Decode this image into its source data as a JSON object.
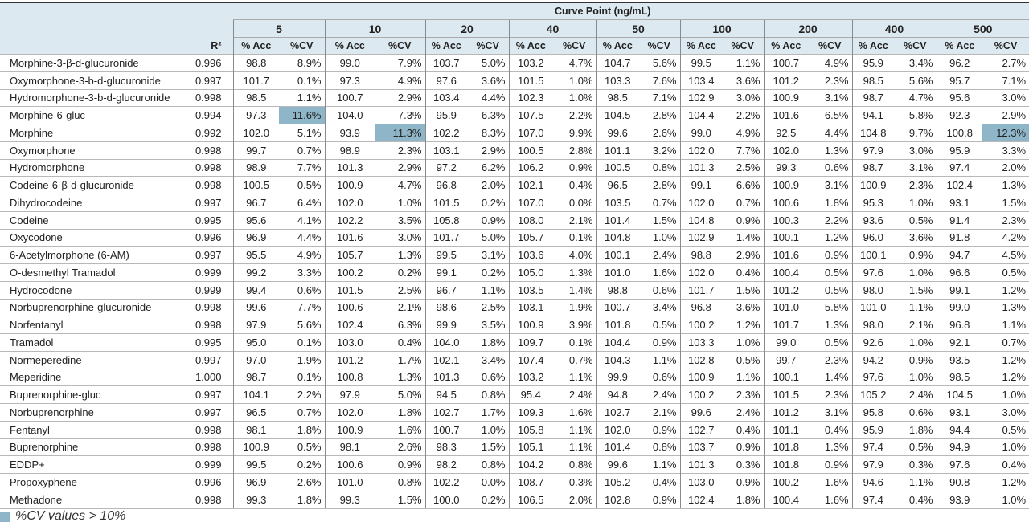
{
  "header": {
    "title": "Curve Point (ng/mL)",
    "r2_label": "R²",
    "acc_label": "% Acc",
    "cv_label": "%CV",
    "points": [
      "5",
      "10",
      "20",
      "40",
      "50",
      "100",
      "200",
      "400",
      "500"
    ]
  },
  "highlight_color": "#8fb6c8",
  "highlight_threshold_pct": 10,
  "rows": [
    {
      "name": "Morphine-3-β-d-glucuronide",
      "r2": "0.996",
      "vals": [
        [
          "98.8",
          "8.9%"
        ],
        [
          "99.0",
          "7.9%"
        ],
        [
          "103.7",
          "5.0%"
        ],
        [
          "103.2",
          "4.7%"
        ],
        [
          "104.7",
          "5.6%"
        ],
        [
          "99.5",
          "1.1%"
        ],
        [
          "100.7",
          "4.9%"
        ],
        [
          "95.9",
          "3.4%"
        ],
        [
          "96.2",
          "2.7%"
        ]
      ]
    },
    {
      "name": "Oxymorphone-3-b-d-glucuronide",
      "r2": "0.997",
      "vals": [
        [
          "101.7",
          "0.1%"
        ],
        [
          "97.3",
          "4.9%"
        ],
        [
          "97.6",
          "3.6%"
        ],
        [
          "101.5",
          "1.0%"
        ],
        [
          "103.3",
          "7.6%"
        ],
        [
          "103.4",
          "3.6%"
        ],
        [
          "101.2",
          "2.3%"
        ],
        [
          "98.5",
          "5.6%"
        ],
        [
          "95.7",
          "7.1%"
        ]
      ]
    },
    {
      "name": "Hydromorphone-3-b-d-glucuronide",
      "r2": "0.998",
      "vals": [
        [
          "98.5",
          "1.1%"
        ],
        [
          "100.7",
          "2.9%"
        ],
        [
          "103.4",
          "4.4%"
        ],
        [
          "102.3",
          "1.0%"
        ],
        [
          "98.5",
          "7.1%"
        ],
        [
          "102.9",
          "3.0%"
        ],
        [
          "100.9",
          "3.1%"
        ],
        [
          "98.7",
          "4.7%"
        ],
        [
          "95.6",
          "3.0%"
        ]
      ]
    },
    {
      "name": "Morphine-6-gluc",
      "r2": "0.994",
      "vals": [
        [
          "97.3",
          "11.6%"
        ],
        [
          "104.0",
          "7.3%"
        ],
        [
          "95.9",
          "6.3%"
        ],
        [
          "107.5",
          "2.2%"
        ],
        [
          "104.5",
          "2.8%"
        ],
        [
          "104.4",
          "2.2%"
        ],
        [
          "101.6",
          "6.5%"
        ],
        [
          "94.1",
          "5.8%"
        ],
        [
          "92.3",
          "2.9%"
        ]
      ]
    },
    {
      "name": "Morphine",
      "r2": "0.992",
      "vals": [
        [
          "102.0",
          "5.1%"
        ],
        [
          "93.9",
          "11.3%"
        ],
        [
          "102.2",
          "8.3%"
        ],
        [
          "107.0",
          "9.9%"
        ],
        [
          "99.6",
          "2.6%"
        ],
        [
          "99.0",
          "4.9%"
        ],
        [
          "92.5",
          "4.4%"
        ],
        [
          "104.8",
          "9.7%"
        ],
        [
          "100.8",
          "12.3%"
        ]
      ]
    },
    {
      "name": "Oxymorphone",
      "r2": "0.998",
      "vals": [
        [
          "99.7",
          "0.7%"
        ],
        [
          "98.9",
          "2.3%"
        ],
        [
          "103.1",
          "2.9%"
        ],
        [
          "100.5",
          "2.8%"
        ],
        [
          "101.1",
          "3.2%"
        ],
        [
          "102.0",
          "7.7%"
        ],
        [
          "102.0",
          "1.3%"
        ],
        [
          "97.9",
          "3.0%"
        ],
        [
          "95.9",
          "3.3%"
        ]
      ]
    },
    {
      "name": "Hydromorphone",
      "r2": "0.998",
      "vals": [
        [
          "98.9",
          "7.7%"
        ],
        [
          "101.3",
          "2.9%"
        ],
        [
          "97.2",
          "6.2%"
        ],
        [
          "106.2",
          "0.9%"
        ],
        [
          "100.5",
          "0.8%"
        ],
        [
          "101.3",
          "2.5%"
        ],
        [
          "99.3",
          "0.6%"
        ],
        [
          "98.7",
          "3.1%"
        ],
        [
          "97.4",
          "2.0%"
        ]
      ]
    },
    {
      "name": "Codeine-6-β-d-glucuronide",
      "r2": "0.998",
      "vals": [
        [
          "100.5",
          "0.5%"
        ],
        [
          "100.9",
          "4.7%"
        ],
        [
          "96.8",
          "2.0%"
        ],
        [
          "102.1",
          "0.4%"
        ],
        [
          "96.5",
          "2.8%"
        ],
        [
          "99.1",
          "6.6%"
        ],
        [
          "100.9",
          "3.1%"
        ],
        [
          "100.9",
          "2.3%"
        ],
        [
          "102.4",
          "1.3%"
        ]
      ]
    },
    {
      "name": "Dihydrocodeine",
      "r2": "0.997",
      "vals": [
        [
          "96.7",
          "6.4%"
        ],
        [
          "102.0",
          "1.0%"
        ],
        [
          "101.5",
          "0.2%"
        ],
        [
          "107.0",
          "0.0%"
        ],
        [
          "103.5",
          "0.7%"
        ],
        [
          "102.0",
          "0.7%"
        ],
        [
          "100.6",
          "1.8%"
        ],
        [
          "95.3",
          "1.0%"
        ],
        [
          "93.1",
          "1.5%"
        ]
      ]
    },
    {
      "name": "Codeine",
      "r2": "0.995",
      "vals": [
        [
          "95.6",
          "4.1%"
        ],
        [
          "102.2",
          "3.5%"
        ],
        [
          "105.8",
          "0.9%"
        ],
        [
          "108.0",
          "2.1%"
        ],
        [
          "101.4",
          "1.5%"
        ],
        [
          "104.8",
          "0.9%"
        ],
        [
          "100.3",
          "2.2%"
        ],
        [
          "93.6",
          "0.5%"
        ],
        [
          "91.4",
          "2.3%"
        ]
      ]
    },
    {
      "name": "Oxycodone",
      "r2": "0.996",
      "vals": [
        [
          "96.9",
          "4.4%"
        ],
        [
          "101.6",
          "3.0%"
        ],
        [
          "101.7",
          "5.0%"
        ],
        [
          "105.7",
          "0.1%"
        ],
        [
          "104.8",
          "1.0%"
        ],
        [
          "102.9",
          "1.4%"
        ],
        [
          "100.1",
          "1.2%"
        ],
        [
          "96.0",
          "3.6%"
        ],
        [
          "91.8",
          "4.2%"
        ]
      ]
    },
    {
      "name": "6-Acetylmorphone (6-AM)",
      "r2": "0.997",
      "vals": [
        [
          "95.5",
          "4.9%"
        ],
        [
          "105.7",
          "1.3%"
        ],
        [
          "99.5",
          "3.1%"
        ],
        [
          "103.6",
          "4.0%"
        ],
        [
          "100.1",
          "2.4%"
        ],
        [
          "98.8",
          "2.9%"
        ],
        [
          "101.6",
          "0.9%"
        ],
        [
          "100.1",
          "0.9%"
        ],
        [
          "94.7",
          "4.5%"
        ]
      ]
    },
    {
      "name": "O-desmethyl Tramadol",
      "r2": "0.999",
      "vals": [
        [
          "99.2",
          "3.3%"
        ],
        [
          "100.2",
          "0.2%"
        ],
        [
          "99.1",
          "0.2%"
        ],
        [
          "105.0",
          "1.3%"
        ],
        [
          "101.0",
          "1.6%"
        ],
        [
          "102.0",
          "0.4%"
        ],
        [
          "100.4",
          "0.5%"
        ],
        [
          "97.6",
          "1.0%"
        ],
        [
          "96.6",
          "0.5%"
        ]
      ]
    },
    {
      "name": "Hydrocodone",
      "r2": "0.999",
      "vals": [
        [
          "99.4",
          "0.6%"
        ],
        [
          "101.5",
          "2.5%"
        ],
        [
          "96.7",
          "1.1%"
        ],
        [
          "103.5",
          "1.4%"
        ],
        [
          "98.8",
          "0.6%"
        ],
        [
          "101.7",
          "1.5%"
        ],
        [
          "101.2",
          "0.5%"
        ],
        [
          "98.0",
          "1.5%"
        ],
        [
          "99.1",
          "1.2%"
        ]
      ]
    },
    {
      "name": "Norbuprenorphine-glucuronide",
      "r2": "0.998",
      "vals": [
        [
          "99.6",
          "7.7%"
        ],
        [
          "100.6",
          "2.1%"
        ],
        [
          "98.6",
          "2.5%"
        ],
        [
          "103.1",
          "1.9%"
        ],
        [
          "100.7",
          "3.4%"
        ],
        [
          "96.8",
          "3.6%"
        ],
        [
          "101.0",
          "5.8%"
        ],
        [
          "101.0",
          "1.1%"
        ],
        [
          "99.0",
          "1.3%"
        ]
      ]
    },
    {
      "name": "Norfentanyl",
      "r2": "0.998",
      "vals": [
        [
          "97.9",
          "5.6%"
        ],
        [
          "102.4",
          "6.3%"
        ],
        [
          "99.9",
          "3.5%"
        ],
        [
          "100.9",
          "3.9%"
        ],
        [
          "101.8",
          "0.5%"
        ],
        [
          "100.2",
          "1.2%"
        ],
        [
          "101.7",
          "1.3%"
        ],
        [
          "98.0",
          "2.1%"
        ],
        [
          "96.8",
          "1.1%"
        ]
      ]
    },
    {
      "name": "Tramadol",
      "r2": "0.995",
      "vals": [
        [
          "95.0",
          "0.1%"
        ],
        [
          "103.0",
          "0.4%"
        ],
        [
          "104.0",
          "1.8%"
        ],
        [
          "109.7",
          "0.1%"
        ],
        [
          "104.4",
          "0.9%"
        ],
        [
          "103.3",
          "1.0%"
        ],
        [
          "99.0",
          "0.5%"
        ],
        [
          "92.6",
          "1.0%"
        ],
        [
          "92.1",
          "0.7%"
        ]
      ]
    },
    {
      "name": "Normeperedine",
      "r2": "0.997",
      "vals": [
        [
          "97.0",
          "1.9%"
        ],
        [
          "101.2",
          "1.7%"
        ],
        [
          "102.1",
          "3.4%"
        ],
        [
          "107.4",
          "0.7%"
        ],
        [
          "104.3",
          "1.1%"
        ],
        [
          "102.8",
          "0.5%"
        ],
        [
          "99.7",
          "2.3%"
        ],
        [
          "94.2",
          "0.9%"
        ],
        [
          "93.5",
          "1.2%"
        ]
      ]
    },
    {
      "name": "Meperidine",
      "r2": "1.000",
      "vals": [
        [
          "98.7",
          "0.1%"
        ],
        [
          "100.8",
          "1.3%"
        ],
        [
          "101.3",
          "0.6%"
        ],
        [
          "103.2",
          "1.1%"
        ],
        [
          "99.9",
          "0.6%"
        ],
        [
          "100.9",
          "1.1%"
        ],
        [
          "100.1",
          "1.4%"
        ],
        [
          "97.6",
          "1.0%"
        ],
        [
          "98.5",
          "1.2%"
        ]
      ]
    },
    {
      "name": "Buprenorphine-gluc",
      "r2": "0.997",
      "vals": [
        [
          "104.1",
          "2.2%"
        ],
        [
          "97.9",
          "5.0%"
        ],
        [
          "94.5",
          "0.8%"
        ],
        [
          "95.4",
          "2.4%"
        ],
        [
          "94.8",
          "2.4%"
        ],
        [
          "100.2",
          "2.3%"
        ],
        [
          "101.5",
          "2.3%"
        ],
        [
          "105.2",
          "2.4%"
        ],
        [
          "104.5",
          "1.0%"
        ]
      ]
    },
    {
      "name": "Norbuprenorphine",
      "r2": "0.997",
      "vals": [
        [
          "96.5",
          "0.7%"
        ],
        [
          "102.0",
          "1.8%"
        ],
        [
          "102.7",
          "1.7%"
        ],
        [
          "109.3",
          "1.6%"
        ],
        [
          "102.7",
          "2.1%"
        ],
        [
          "99.6",
          "2.4%"
        ],
        [
          "101.2",
          "3.1%"
        ],
        [
          "95.8",
          "0.6%"
        ],
        [
          "93.1",
          "3.0%"
        ]
      ]
    },
    {
      "name": "Fentanyl",
      "r2": "0.998",
      "vals": [
        [
          "98.1",
          "1.8%"
        ],
        [
          "100.9",
          "1.6%"
        ],
        [
          "100.7",
          "1.0%"
        ],
        [
          "105.8",
          "1.1%"
        ],
        [
          "102.0",
          "0.9%"
        ],
        [
          "102.7",
          "0.4%"
        ],
        [
          "101.1",
          "0.4%"
        ],
        [
          "95.9",
          "1.8%"
        ],
        [
          "94.4",
          "0.5%"
        ]
      ]
    },
    {
      "name": "Buprenorphine",
      "r2": "0.998",
      "vals": [
        [
          "100.9",
          "0.5%"
        ],
        [
          "98.1",
          "2.6%"
        ],
        [
          "98.3",
          "1.5%"
        ],
        [
          "105.1",
          "1.1%"
        ],
        [
          "101.4",
          "0.8%"
        ],
        [
          "103.7",
          "0.9%"
        ],
        [
          "101.8",
          "1.3%"
        ],
        [
          "97.4",
          "0.5%"
        ],
        [
          "94.9",
          "1.0%"
        ]
      ]
    },
    {
      "name": "EDDP+",
      "r2": "0.999",
      "vals": [
        [
          "99.5",
          "0.2%"
        ],
        [
          "100.6",
          "0.9%"
        ],
        [
          "98.2",
          "0.8%"
        ],
        [
          "104.2",
          "0.8%"
        ],
        [
          "99.6",
          "1.1%"
        ],
        [
          "101.3",
          "0.3%"
        ],
        [
          "101.8",
          "0.9%"
        ],
        [
          "97.9",
          "0.3%"
        ],
        [
          "97.6",
          "0.4%"
        ]
      ]
    },
    {
      "name": "Propoxyphene",
      "r2": "0.996",
      "vals": [
        [
          "96.9",
          "2.6%"
        ],
        [
          "101.0",
          "0.8%"
        ],
        [
          "102.2",
          "0.0%"
        ],
        [
          "108.7",
          "0.3%"
        ],
        [
          "105.2",
          "0.4%"
        ],
        [
          "103.0",
          "0.9%"
        ],
        [
          "100.2",
          "1.6%"
        ],
        [
          "94.6",
          "1.1%"
        ],
        [
          "90.8",
          "1.2%"
        ]
      ]
    },
    {
      "name": "Methadone",
      "r2": "0.998",
      "vals": [
        [
          "99.3",
          "1.8%"
        ],
        [
          "99.3",
          "1.5%"
        ],
        [
          "100.0",
          "0.2%"
        ],
        [
          "106.5",
          "2.0%"
        ],
        [
          "102.8",
          "0.9%"
        ],
        [
          "102.4",
          "1.8%"
        ],
        [
          "100.4",
          "1.6%"
        ],
        [
          "97.4",
          "0.4%"
        ],
        [
          "93.9",
          "1.0%"
        ]
      ]
    }
  ],
  "legend": {
    "label": "%CV values > 10%"
  }
}
